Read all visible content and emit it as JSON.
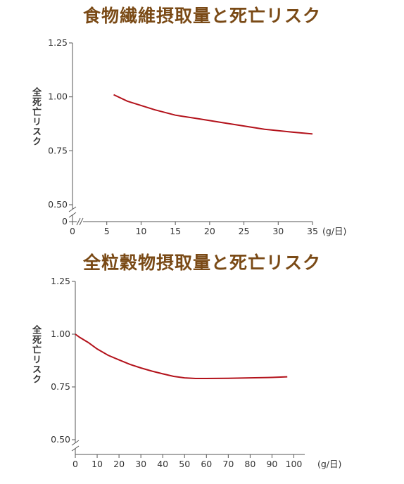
{
  "chart_data": [
    {
      "type": "line",
      "title": "食物繊維摂取量と死亡リスク",
      "ylabel": "全死亡リスク",
      "x_unit_label": "(g/日)",
      "xlim": [
        0,
        35
      ],
      "ylim": [
        0.5,
        1.25
      ],
      "y_break": true,
      "x_break": true,
      "x_ticks": [
        {
          "value": 0,
          "label": "0"
        },
        {
          "value": 5,
          "label": "5"
        },
        {
          "value": 10,
          "label": "10"
        },
        {
          "value": 15,
          "label": "15"
        },
        {
          "value": 20,
          "label": "20"
        },
        {
          "value": 25,
          "label": "25"
        },
        {
          "value": 30,
          "label": "30"
        },
        {
          "value": 35,
          "label": "35"
        }
      ],
      "y_ticks": [
        {
          "value": 0.5,
          "label": "0.50"
        },
        {
          "value": 0.75,
          "label": "0.75"
        },
        {
          "value": 1.0,
          "label": "1.00"
        },
        {
          "value": 1.25,
          "label": "1.25"
        }
      ],
      "y_zero_label": "0",
      "series_color": "#b3121b",
      "series": [
        {
          "x": [
            6,
            8,
            10,
            12,
            15,
            18,
            20,
            22,
            25,
            28,
            30,
            32,
            35
          ],
          "y": [
            1.01,
            0.98,
            0.96,
            0.94,
            0.915,
            0.9,
            0.89,
            0.88,
            0.865,
            0.85,
            0.843,
            0.837,
            0.828
          ]
        }
      ]
    },
    {
      "type": "line",
      "title": "全粒穀物摂取量と死亡リスク",
      "ylabel": "全死亡リスク",
      "x_unit_label": "(g/日)",
      "xlim": [
        0,
        105
      ],
      "ylim": [
        0.5,
        1.25
      ],
      "y_break": true,
      "x_break": false,
      "x_ticks": [
        {
          "value": 0,
          "label": "0"
        },
        {
          "value": 10,
          "label": "10"
        },
        {
          "value": 20,
          "label": "20"
        },
        {
          "value": 30,
          "label": "30"
        },
        {
          "value": 40,
          "label": "40"
        },
        {
          "value": 50,
          "label": "50"
        },
        {
          "value": 60,
          "label": "60"
        },
        {
          "value": 70,
          "label": "70"
        },
        {
          "value": 80,
          "label": "80"
        },
        {
          "value": 90,
          "label": "90"
        },
        {
          "value": 100,
          "label": "100"
        }
      ],
      "y_ticks": [
        {
          "value": 0.5,
          "label": "0.50"
        },
        {
          "value": 0.75,
          "label": "0.75"
        },
        {
          "value": 1.0,
          "label": "1.00"
        },
        {
          "value": 1.25,
          "label": "1.25"
        }
      ],
      "series_color": "#b3121b",
      "series": [
        {
          "x": [
            0,
            2,
            6,
            10,
            15,
            20,
            25,
            30,
            35,
            40,
            45,
            50,
            55,
            60,
            70,
            80,
            90,
            97
          ],
          "y": [
            1.0,
            0.985,
            0.96,
            0.93,
            0.9,
            0.878,
            0.857,
            0.84,
            0.825,
            0.812,
            0.8,
            0.793,
            0.79,
            0.79,
            0.791,
            0.793,
            0.795,
            0.798
          ]
        }
      ]
    }
  ]
}
